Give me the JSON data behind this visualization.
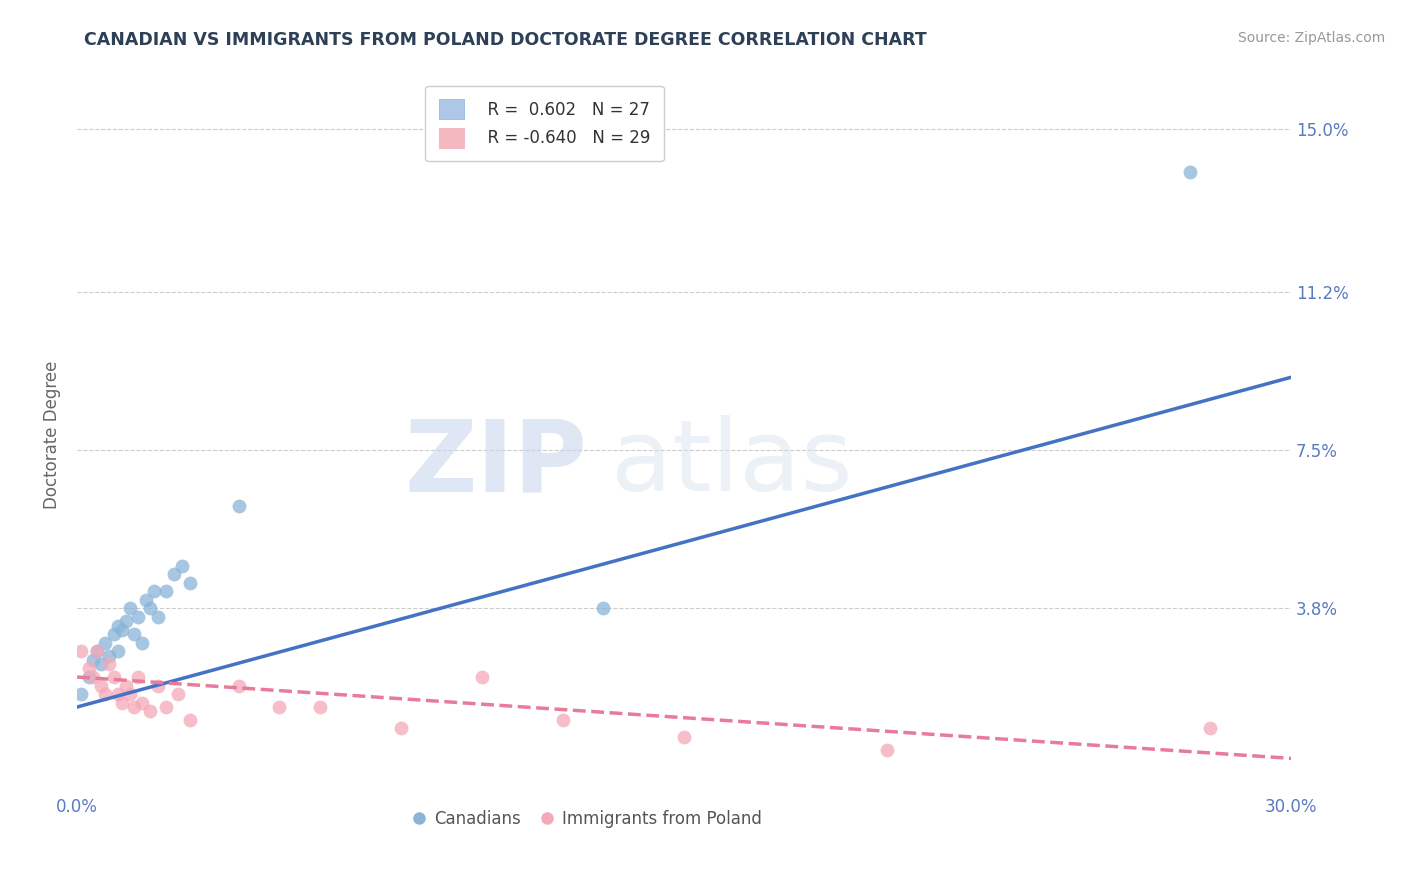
{
  "title": "CANADIAN VS IMMIGRANTS FROM POLAND DOCTORATE DEGREE CORRELATION CHART",
  "source": "Source: ZipAtlas.com",
  "ylabel": "Doctorate Degree",
  "xlim": [
    0.0,
    0.3
  ],
  "ylim": [
    -0.005,
    0.162
  ],
  "xticks": [
    0.0,
    0.05,
    0.1,
    0.15,
    0.2,
    0.25,
    0.3
  ],
  "xticklabels": [
    "0.0%",
    "",
    "",
    "",
    "",
    "",
    "30.0%"
  ],
  "ytick_positions": [
    0.0,
    0.038,
    0.075,
    0.112,
    0.15
  ],
  "right_ytick_positions": [
    0.038,
    0.075,
    0.112,
    0.15
  ],
  "right_ytick_labels": [
    "3.8%",
    "7.5%",
    "11.2%",
    "15.0%"
  ],
  "legend_r1": "R =  0.602",
  "legend_n1": "N = 27",
  "legend_r2": "R = -0.640",
  "legend_n2": "N = 29",
  "legend_color1": "#aec6e8",
  "legend_color2": "#f4b8c1",
  "series1_color": "#8ab4d8",
  "series2_color": "#f4a8b8",
  "trend1_color": "#4472c4",
  "trend2_color": "#e87a9a",
  "watermark_zip": "ZIP",
  "watermark_atlas": "atlas",
  "background_color": "#ffffff",
  "canadians_x": [
    0.001,
    0.003,
    0.004,
    0.005,
    0.006,
    0.007,
    0.008,
    0.009,
    0.01,
    0.01,
    0.011,
    0.012,
    0.013,
    0.014,
    0.015,
    0.016,
    0.017,
    0.018,
    0.019,
    0.02,
    0.022,
    0.024,
    0.026,
    0.028,
    0.04,
    0.13,
    0.275
  ],
  "canadians_y": [
    0.018,
    0.022,
    0.026,
    0.028,
    0.025,
    0.03,
    0.027,
    0.032,
    0.034,
    0.028,
    0.033,
    0.035,
    0.038,
    0.032,
    0.036,
    0.03,
    0.04,
    0.038,
    0.042,
    0.036,
    0.042,
    0.046,
    0.048,
    0.044,
    0.062,
    0.038,
    0.14
  ],
  "poland_x": [
    0.001,
    0.003,
    0.004,
    0.005,
    0.006,
    0.007,
    0.008,
    0.009,
    0.01,
    0.011,
    0.012,
    0.013,
    0.014,
    0.015,
    0.016,
    0.018,
    0.02,
    0.022,
    0.025,
    0.028,
    0.04,
    0.05,
    0.06,
    0.08,
    0.1,
    0.12,
    0.15,
    0.2,
    0.28
  ],
  "poland_y": [
    0.028,
    0.024,
    0.022,
    0.028,
    0.02,
    0.018,
    0.025,
    0.022,
    0.018,
    0.016,
    0.02,
    0.018,
    0.015,
    0.022,
    0.016,
    0.014,
    0.02,
    0.015,
    0.018,
    0.012,
    0.02,
    0.015,
    0.015,
    0.01,
    0.022,
    0.012,
    0.008,
    0.005,
    0.01
  ],
  "trend1_x0": 0.0,
  "trend1_y0": 0.015,
  "trend1_x1": 0.3,
  "trend1_y1": 0.092,
  "trend2_x0": 0.0,
  "trend2_y0": 0.022,
  "trend2_x1": 0.3,
  "trend2_y1": 0.003,
  "grid_color": "#cccccc",
  "title_color": "#2e4057",
  "axis_label_color": "#5a7abf",
  "ylabel_color": "#666666"
}
